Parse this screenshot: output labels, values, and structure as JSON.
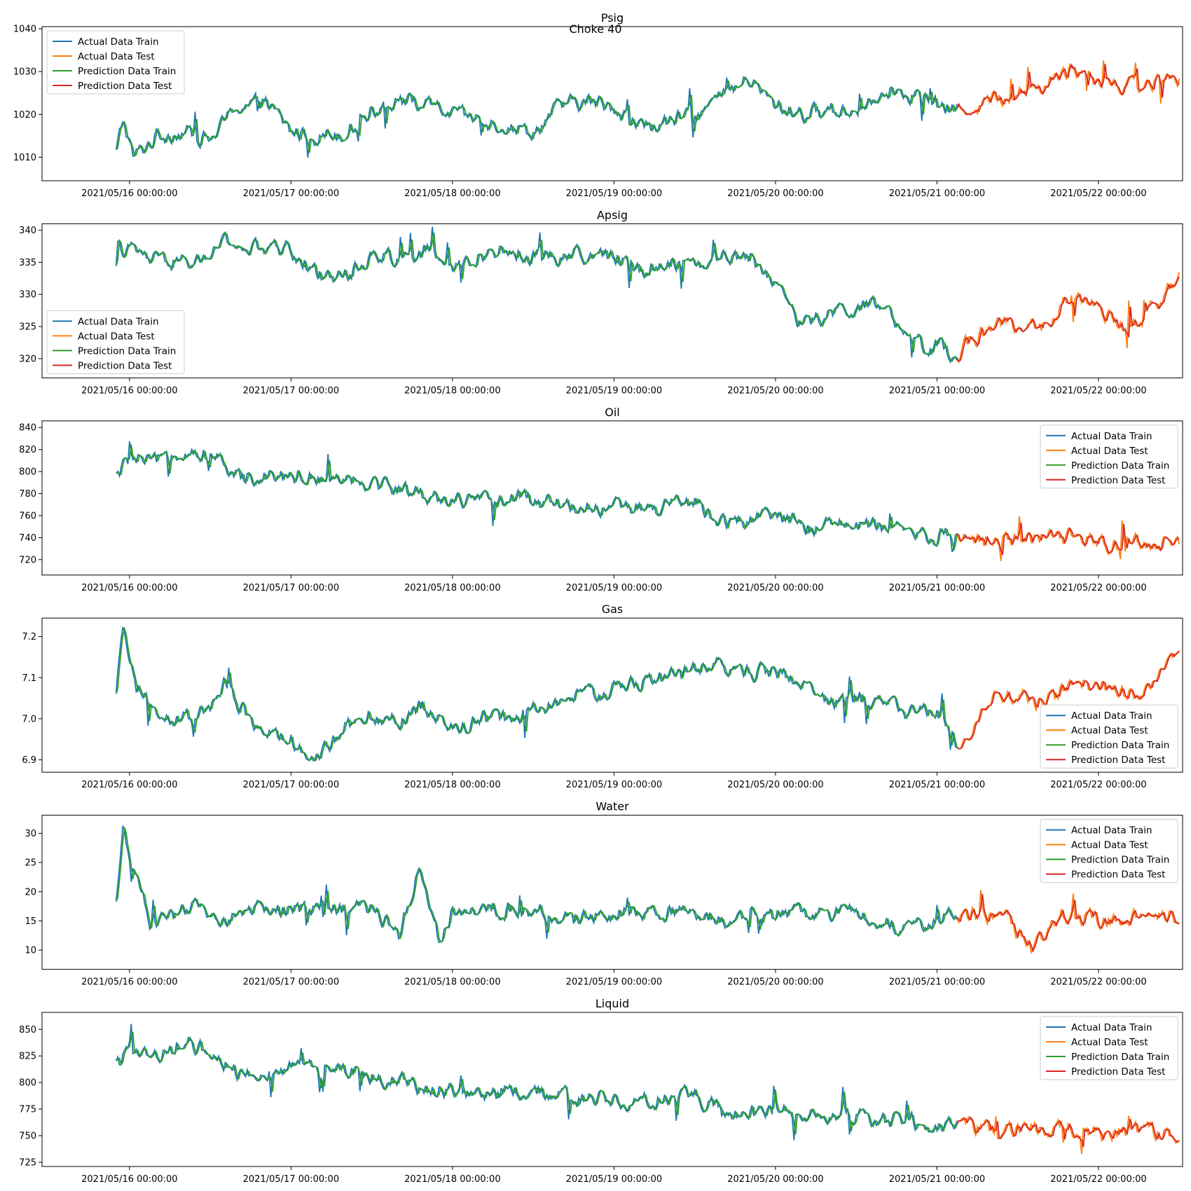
{
  "figure": {
    "suptitle": "Choke 40"
  },
  "colors": {
    "actual_train": "#1f77b4",
    "actual_test": "#ff7f0e",
    "prediction_train": "#2ca02c",
    "prediction_test": "#d62728"
  },
  "legend_labels": [
    "Actual Data Train",
    "Actual Data Test",
    "Prediction Data Train",
    "Prediction Data Test"
  ],
  "x_tick_labels": [
    "2021/05/16 00:00:00",
    "2021/05/17 00:00:00",
    "2021/05/18 00:00:00",
    "2021/05/19 00:00:00",
    "2021/05/20 00:00:00",
    "2021/05/21 00:00:00",
    "2021/05/22 00:00:00"
  ],
  "chart_data": [
    {
      "type": "line",
      "title": "Psig",
      "legend": "upper-left",
      "xlim": [
        "2021/05/15 11:00:00",
        "2021/05/22 12:30:00"
      ],
      "ylim": [
        1004.5,
        1040.5
      ],
      "yticks": [
        1010,
        1020,
        1030,
        1040
      ],
      "train_end": "2021/05/21 03:00:00",
      "test_end": "2021/05/22 12:00:00",
      "series_points": [
        [
          "2021/05/15 22:00:00",
          1011
        ],
        [
          "2021/05/15 23:00:00",
          1019
        ],
        [
          "2021/05/16 00:30:00",
          1010
        ],
        [
          "2021/05/16 02:00:00",
          1012
        ],
        [
          "2021/05/16 04:00:00",
          1015
        ],
        [
          "2021/05/16 08:00:00",
          1016
        ],
        [
          "2021/05/16 12:00:00",
          1014
        ],
        [
          "2021/05/16 16:00:00",
          1022
        ],
        [
          "2021/05/16 20:00:00",
          1023
        ],
        [
          "2021/05/17 00:00:00",
          1016
        ],
        [
          "2021/05/17 04:00:00",
          1015
        ],
        [
          "2021/05/17 08:00:00",
          1016
        ],
        [
          "2021/05/17 12:00:00",
          1021
        ],
        [
          "2021/05/17 16:00:00",
          1024
        ],
        [
          "2021/05/17 20:00:00",
          1022
        ],
        [
          "2021/05/18 00:00:00",
          1020
        ],
        [
          "2021/05/18 06:00:00",
          1018
        ],
        [
          "2021/05/18 12:00:00",
          1016
        ],
        [
          "2021/05/18 16:00:00",
          1022
        ],
        [
          "2021/05/18 20:00:00",
          1023
        ],
        [
          "2021/05/19 00:00:00",
          1022
        ],
        [
          "2021/05/19 04:00:00",
          1017
        ],
        [
          "2021/05/19 08:00:00",
          1018
        ],
        [
          "2021/05/19 12:00:00",
          1020
        ],
        [
          "2021/05/19 16:00:00",
          1024
        ],
        [
          "2021/05/19 20:00:00",
          1028
        ],
        [
          "2021/05/20 00:00:00",
          1022
        ],
        [
          "2021/05/20 04:00:00",
          1020
        ],
        [
          "2021/05/20 08:00:00",
          1021
        ],
        [
          "2021/05/20 12:00:00",
          1021
        ],
        [
          "2021/05/20 16:00:00",
          1026
        ],
        [
          "2021/05/20 20:00:00",
          1025
        ],
        [
          "2021/05/21 00:00:00",
          1022
        ],
        [
          "2021/05/21 03:00:00",
          1021
        ],
        [
          "2021/05/21 08:00:00",
          1023
        ],
        [
          "2021/05/21 12:00:00",
          1025
        ],
        [
          "2021/05/21 16:00:00",
          1027
        ],
        [
          "2021/05/21 20:00:00",
          1031
        ],
        [
          "2021/05/22 00:00:00",
          1028
        ],
        [
          "2021/05/22 04:00:00",
          1027
        ],
        [
          "2021/05/22 08:00:00",
          1027
        ],
        [
          "2021/05/22 12:00:00",
          1029
        ]
      ]
    },
    {
      "type": "line",
      "title": "Apsig",
      "legend": "lower-left",
      "xlim": [
        "2021/05/15 11:00:00",
        "2021/05/22 12:30:00"
      ],
      "ylim": [
        317,
        341
      ],
      "yticks": [
        320,
        325,
        330,
        335,
        340
      ],
      "train_end": "2021/05/21 03:00:00",
      "test_end": "2021/05/22 12:00:00",
      "series_points": [
        [
          "2021/05/15 22:00:00",
          337
        ],
        [
          "2021/05/16 00:00:00",
          337
        ],
        [
          "2021/05/16 04:00:00",
          335
        ],
        [
          "2021/05/16 10:00:00",
          335
        ],
        [
          "2021/05/16 14:00:00",
          338
        ],
        [
          "2021/05/16 18:00:00",
          337
        ],
        [
          "2021/05/17 00:00:00",
          337
        ],
        [
          "2021/05/17 04:00:00",
          333
        ],
        [
          "2021/05/17 08:00:00",
          333
        ],
        [
          "2021/05/17 12:00:00",
          336
        ],
        [
          "2021/05/17 16:00:00",
          336
        ],
        [
          "2021/05/17 20:00:00",
          337
        ],
        [
          "2021/05/18 00:00:00",
          334
        ],
        [
          "2021/05/18 06:00:00",
          337
        ],
        [
          "2021/05/18 12:00:00",
          336
        ],
        [
          "2021/05/18 16:00:00",
          336
        ],
        [
          "2021/05/18 20:00:00",
          336
        ],
        [
          "2021/05/19 00:00:00",
          336
        ],
        [
          "2021/05/19 04:00:00",
          334
        ],
        [
          "2021/05/19 08:00:00",
          335
        ],
        [
          "2021/05/19 12:00:00",
          335
        ],
        [
          "2021/05/19 16:00:00",
          336
        ],
        [
          "2021/05/19 20:00:00",
          336
        ],
        [
          "2021/05/20 00:00:00",
          332
        ],
        [
          "2021/05/20 04:00:00",
          325
        ],
        [
          "2021/05/20 08:00:00",
          327
        ],
        [
          "2021/05/20 12:00:00",
          328
        ],
        [
          "2021/05/20 16:00:00",
          328
        ],
        [
          "2021/05/20 20:00:00",
          322
        ],
        [
          "2021/05/21 00:00:00",
          322
        ],
        [
          "2021/05/21 03:00:00",
          321
        ],
        [
          "2021/05/21 08:00:00",
          325
        ],
        [
          "2021/05/21 12:00:00",
          325
        ],
        [
          "2021/05/21 16:00:00",
          325
        ],
        [
          "2021/05/21 20:00:00",
          330
        ],
        [
          "2021/05/22 00:00:00",
          327
        ],
        [
          "2021/05/22 06:00:00",
          325
        ],
        [
          "2021/05/22 10:00:00",
          330
        ],
        [
          "2021/05/22 12:00:00",
          334
        ]
      ]
    },
    {
      "type": "line",
      "title": "Oil",
      "legend": "upper-right",
      "xlim": [
        "2021/05/15 11:00:00",
        "2021/05/22 12:30:00"
      ],
      "ylim": [
        706,
        846
      ],
      "yticks": [
        720,
        740,
        760,
        780,
        800,
        820,
        840
      ],
      "train_end": "2021/05/21 03:00:00",
      "test_end": "2021/05/22 12:00:00",
      "series_points": [
        [
          "2021/05/15 22:00:00",
          795
        ],
        [
          "2021/05/16 00:00:00",
          812
        ],
        [
          "2021/05/16 04:00:00",
          808
        ],
        [
          "2021/05/16 08:00:00",
          820
        ],
        [
          "2021/05/16 12:00:00",
          815
        ],
        [
          "2021/05/16 16:00:00",
          795
        ],
        [
          "2021/05/16 20:00:00",
          798
        ],
        [
          "2021/05/17 00:00:00",
          797
        ],
        [
          "2021/05/17 04:00:00",
          795
        ],
        [
          "2021/05/17 08:00:00",
          796
        ],
        [
          "2021/05/17 12:00:00",
          790
        ],
        [
          "2021/05/17 16:00:00",
          785
        ],
        [
          "2021/05/17 20:00:00",
          778
        ],
        [
          "2021/05/18 00:00:00",
          775
        ],
        [
          "2021/05/18 04:00:00",
          772
        ],
        [
          "2021/05/18 08:00:00",
          775
        ],
        [
          "2021/05/18 12:00:00",
          775
        ],
        [
          "2021/05/18 16:00:00",
          770
        ],
        [
          "2021/05/18 20:00:00",
          768
        ],
        [
          "2021/05/19 00:00:00",
          768
        ],
        [
          "2021/05/19 04:00:00",
          765
        ],
        [
          "2021/05/19 08:00:00",
          768
        ],
        [
          "2021/05/19 12:00:00",
          772
        ],
        [
          "2021/05/19 16:00:00",
          755
        ],
        [
          "2021/05/19 20:00:00",
          755
        ],
        [
          "2021/05/20 00:00:00",
          760
        ],
        [
          "2021/05/20 04:00:00",
          750
        ],
        [
          "2021/05/20 08:00:00",
          752
        ],
        [
          "2021/05/20 12:00:00",
          752
        ],
        [
          "2021/05/20 16:00:00",
          748
        ],
        [
          "2021/05/20 20:00:00",
          745
        ],
        [
          "2021/05/21 00:00:00",
          742
        ],
        [
          "2021/05/21 03:00:00",
          742
        ],
        [
          "2021/05/21 08:00:00",
          738
        ],
        [
          "2021/05/21 12:00:00",
          740
        ],
        [
          "2021/05/21 16:00:00",
          738
        ],
        [
          "2021/05/21 20:00:00",
          740
        ],
        [
          "2021/05/22 00:00:00",
          735
        ],
        [
          "2021/05/22 04:00:00",
          736
        ],
        [
          "2021/05/22 08:00:00",
          738
        ],
        [
          "2021/05/22 12:00:00",
          732
        ]
      ]
    },
    {
      "type": "line",
      "title": "Gas",
      "legend": "lower-right",
      "xlim": [
        "2021/05/15 11:00:00",
        "2021/05/22 12:30:00"
      ],
      "ylim": [
        6.87,
        7.245
      ],
      "yticks": [
        6.9,
        7.0,
        7.1,
        7.2
      ],
      "train_end": "2021/05/21 03:00:00",
      "test_end": "2021/05/22 12:00:00",
      "series_points": [
        [
          "2021/05/15 22:00:00",
          7.05
        ],
        [
          "2021/05/15 23:00:00",
          7.22
        ],
        [
          "2021/05/16 01:00:00",
          7.08
        ],
        [
          "2021/05/16 04:00:00",
          7.0
        ],
        [
          "2021/05/16 08:00:00",
          7.0
        ],
        [
          "2021/05/16 12:00:00",
          7.02
        ],
        [
          "2021/05/16 14:00:00",
          7.08
        ],
        [
          "2021/05/16 18:00:00",
          7.0
        ],
        [
          "2021/05/16 22:00:00",
          6.95
        ],
        [
          "2021/05/17 00:00:00",
          6.95
        ],
        [
          "2021/05/17 04:00:00",
          6.9
        ],
        [
          "2021/05/17 08:00:00",
          6.98
        ],
        [
          "2021/05/17 12:00:00",
          7.01
        ],
        [
          "2021/05/17 16:00:00",
          7.0
        ],
        [
          "2021/05/17 20:00:00",
          7.03
        ],
        [
          "2021/05/18 00:00:00",
          6.97
        ],
        [
          "2021/05/18 04:00:00",
          7.0
        ],
        [
          "2021/05/18 08:00:00",
          7.0
        ],
        [
          "2021/05/18 12:00:00",
          7.02
        ],
        [
          "2021/05/18 16:00:00",
          7.04
        ],
        [
          "2021/05/18 20:00:00",
          7.06
        ],
        [
          "2021/05/19 00:00:00",
          7.07
        ],
        [
          "2021/05/19 04:00:00",
          7.09
        ],
        [
          "2021/05/19 08:00:00",
          7.1
        ],
        [
          "2021/05/19 12:00:00",
          7.12
        ],
        [
          "2021/05/19 16:00:00",
          7.13
        ],
        [
          "2021/05/19 20:00:00",
          7.11
        ],
        [
          "2021/05/20 00:00:00",
          7.12
        ],
        [
          "2021/05/20 04:00:00",
          7.08
        ],
        [
          "2021/05/20 08:00:00",
          7.04
        ],
        [
          "2021/05/20 12:00:00",
          7.05
        ],
        [
          "2021/05/20 16:00:00",
          7.03
        ],
        [
          "2021/05/20 20:00:00",
          7.02
        ],
        [
          "2021/05/21 00:00:00",
          7.02
        ],
        [
          "2021/05/21 03:00:00",
          6.93
        ],
        [
          "2021/05/21 08:00:00",
          7.05
        ],
        [
          "2021/05/21 12:00:00",
          7.05
        ],
        [
          "2021/05/21 16:00:00",
          7.04
        ],
        [
          "2021/05/21 20:00:00",
          7.08
        ],
        [
          "2021/05/22 00:00:00",
          7.08
        ],
        [
          "2021/05/22 06:00:00",
          7.05
        ],
        [
          "2021/05/22 10:00:00",
          7.15
        ],
        [
          "2021/05/22 12:00:00",
          7.17
        ]
      ]
    },
    {
      "type": "line",
      "title": "Water",
      "legend": "upper-right",
      "xlim": [
        "2021/05/15 11:00:00",
        "2021/05/22 12:30:00"
      ],
      "ylim": [
        6.7,
        33.1
      ],
      "yticks": [
        10,
        15,
        20,
        25,
        30
      ],
      "train_end": "2021/05/21 03:00:00",
      "test_end": "2021/05/22 12:00:00",
      "series_points": [
        [
          "2021/05/15 22:00:00",
          17.5
        ],
        [
          "2021/05/15 23:00:00",
          31
        ],
        [
          "2021/05/16 01:00:00",
          22
        ],
        [
          "2021/05/16 03:00:00",
          15
        ],
        [
          "2021/05/16 06:00:00",
          15
        ],
        [
          "2021/05/16 10:00:00",
          17.5
        ],
        [
          "2021/05/16 14:00:00",
          15
        ],
        [
          "2021/05/16 18:00:00",
          17
        ],
        [
          "2021/05/17 00:00:00",
          17
        ],
        [
          "2021/05/17 06:00:00",
          17.2
        ],
        [
          "2021/05/17 12:00:00",
          17
        ],
        [
          "2021/05/17 16:00:00",
          13
        ],
        [
          "2021/05/17 19:00:00",
          24
        ],
        [
          "2021/05/17 22:00:00",
          12
        ],
        [
          "2021/05/18 00:00:00",
          17
        ],
        [
          "2021/05/18 06:00:00",
          17
        ],
        [
          "2021/05/18 12:00:00",
          17
        ],
        [
          "2021/05/18 18:00:00",
          15
        ],
        [
          "2021/05/19 00:00:00",
          16.5
        ],
        [
          "2021/05/19 06:00:00",
          16.8
        ],
        [
          "2021/05/19 12:00:00",
          16.5
        ],
        [
          "2021/05/19 18:00:00",
          15
        ],
        [
          "2021/05/20 00:00:00",
          16
        ],
        [
          "2021/05/20 06:00:00",
          16.5
        ],
        [
          "2021/05/20 12:00:00",
          16.5
        ],
        [
          "2021/05/20 18:00:00",
          14
        ],
        [
          "2021/05/21 00:00:00",
          15
        ],
        [
          "2021/05/21 03:00:00",
          16.2
        ],
        [
          "2021/05/21 10:00:00",
          16
        ],
        [
          "2021/05/21 14:00:00",
          10
        ],
        [
          "2021/05/21 18:00:00",
          16
        ],
        [
          "2021/05/22 00:00:00",
          15.5
        ],
        [
          "2021/05/22 06:00:00",
          15.8
        ],
        [
          "2021/05/22 12:00:00",
          15.7
        ]
      ]
    },
    {
      "type": "line",
      "title": "Liquid",
      "legend": "upper-right",
      "xlim": [
        "2021/05/15 11:00:00",
        "2021/05/22 12:30:00"
      ],
      "ylim": [
        721,
        866
      ],
      "yticks": [
        725,
        750,
        775,
        800,
        825,
        850
      ],
      "train_end": "2021/05/21 03:00:00",
      "test_end": "2021/05/22 12:00:00",
      "series_points": [
        [
          "2021/05/15 22:00:00",
          815
        ],
        [
          "2021/05/16 00:00:00",
          830
        ],
        [
          "2021/05/16 04:00:00",
          825
        ],
        [
          "2021/05/16 08:00:00",
          838
        ],
        [
          "2021/05/16 12:00:00",
          830
        ],
        [
          "2021/05/16 16:00:00",
          810
        ],
        [
          "2021/05/16 20:00:00",
          812
        ],
        [
          "2021/05/17 00:00:00",
          812
        ],
        [
          "2021/05/17 04:00:00",
          810
        ],
        [
          "2021/05/17 08:00:00",
          812
        ],
        [
          "2021/05/17 12:00:00",
          806
        ],
        [
          "2021/05/17 16:00:00",
          800
        ],
        [
          "2021/05/17 20:00:00",
          795
        ],
        [
          "2021/05/18 00:00:00",
          792
        ],
        [
          "2021/05/18 04:00:00",
          788
        ],
        [
          "2021/05/18 08:00:00",
          792
        ],
        [
          "2021/05/18 12:00:00",
          792
        ],
        [
          "2021/05/18 16:00:00",
          786
        ],
        [
          "2021/05/18 20:00:00",
          785
        ],
        [
          "2021/05/19 00:00:00",
          785
        ],
        [
          "2021/05/19 04:00:00",
          782
        ],
        [
          "2021/05/19 08:00:00",
          784
        ],
        [
          "2021/05/19 12:00:00",
          788
        ],
        [
          "2021/05/19 16:00:00",
          772
        ],
        [
          "2021/05/19 20:00:00",
          770
        ],
        [
          "2021/05/20 00:00:00",
          776
        ],
        [
          "2021/05/20 04:00:00",
          766
        ],
        [
          "2021/05/20 08:00:00",
          768
        ],
        [
          "2021/05/20 12:00:00",
          768
        ],
        [
          "2021/05/20 16:00:00",
          764
        ],
        [
          "2021/05/20 20:00:00",
          762
        ],
        [
          "2021/05/21 00:00:00",
          758
        ],
        [
          "2021/05/21 03:00:00",
          758
        ],
        [
          "2021/05/21 08:00:00",
          755
        ],
        [
          "2021/05/21 12:00:00",
          757
        ],
        [
          "2021/05/21 16:00:00",
          754
        ],
        [
          "2021/05/21 20:00:00",
          756
        ],
        [
          "2021/05/22 00:00:00",
          751
        ],
        [
          "2021/05/22 04:00:00",
          752
        ],
        [
          "2021/05/22 08:00:00",
          754
        ],
        [
          "2021/05/22 12:00:00",
          748
        ]
      ]
    }
  ]
}
